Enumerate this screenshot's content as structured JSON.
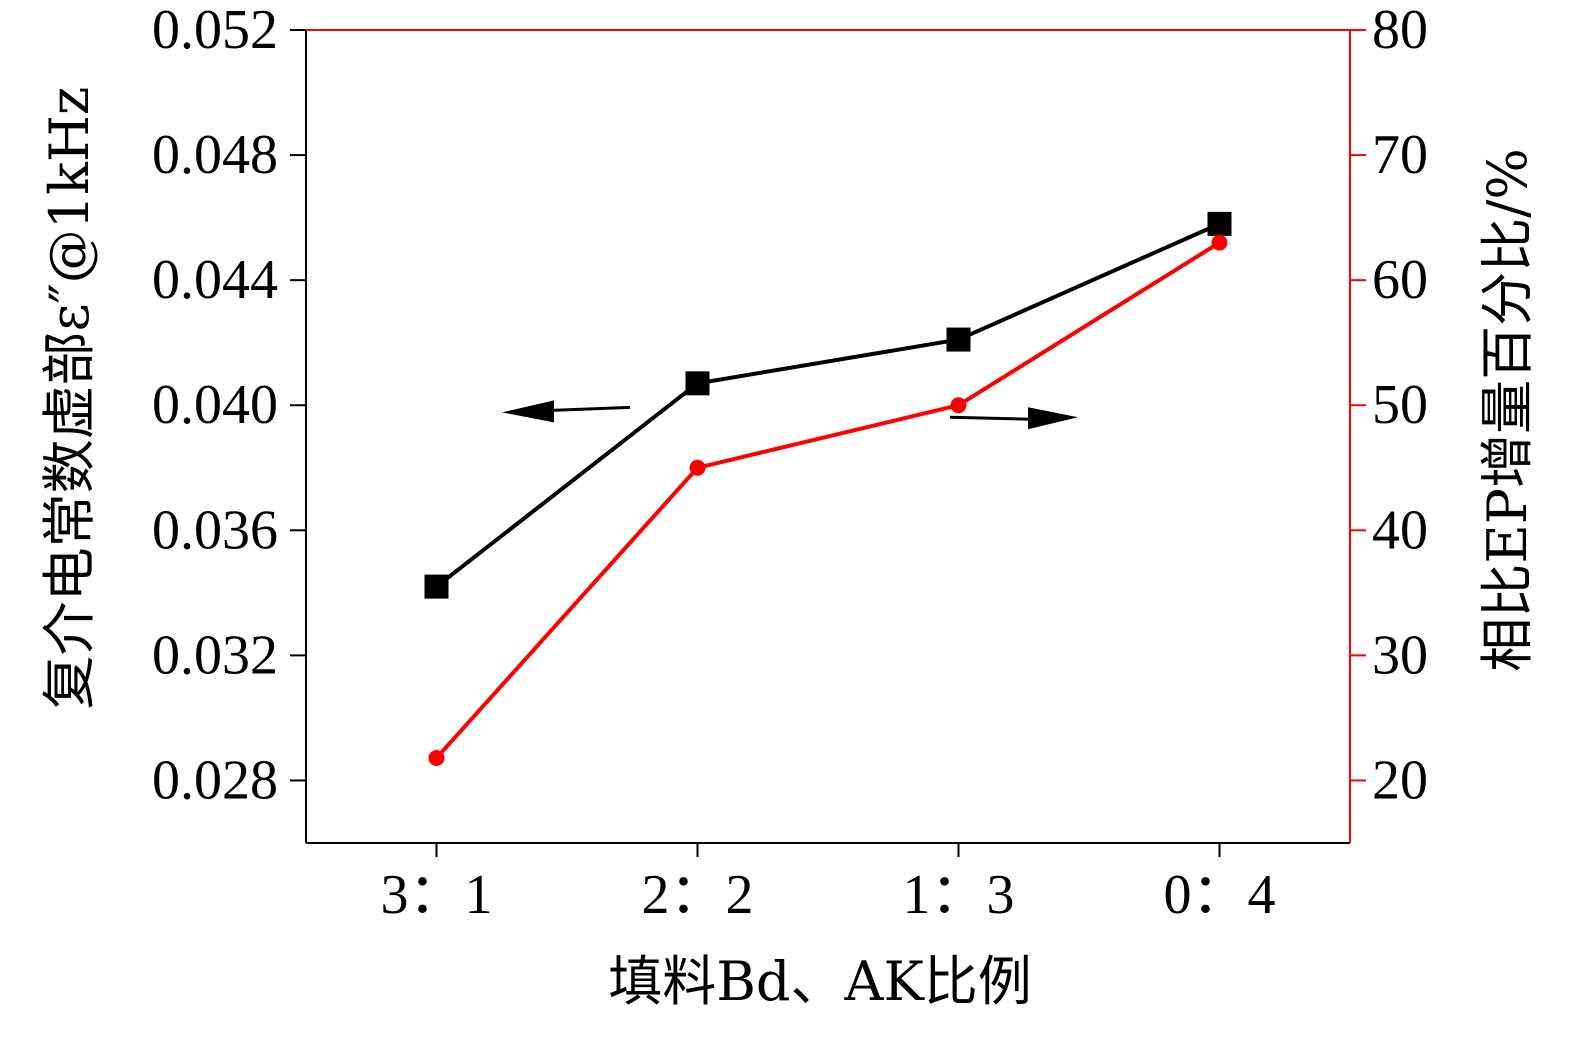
{
  "chart_data": {
    "type": "line",
    "categories": [
      "3：1",
      "2：2",
      "1：3",
      "0：4"
    ],
    "xlabel": "填料Bd、AK比例",
    "ylabel_left": "复介电常数虚部ε″@1kHz",
    "ylabel_right": "相比EP增量百分比/%",
    "y_left": {
      "lim": [
        0.026,
        0.052
      ],
      "ticks": [
        0.028,
        0.032,
        0.036,
        0.04,
        0.044,
        0.048,
        0.052
      ],
      "tick_labels": [
        "0.028",
        "0.032",
        "0.036",
        "0.040",
        "0.044",
        "0.048",
        "0.052"
      ]
    },
    "y_right": {
      "lim": [
        15,
        80
      ],
      "ticks": [
        20,
        30,
        40,
        50,
        60,
        70,
        80
      ],
      "tick_labels": [
        "20",
        "30",
        "40",
        "50",
        "60",
        "70",
        "80"
      ]
    },
    "series": [
      {
        "axis": "left",
        "marker": "square",
        "color": "#000000",
        "values": [
          0.0342,
          0.0407,
          0.0421,
          0.0458
        ]
      },
      {
        "axis": "right",
        "marker": "circle",
        "color": "#ff0000",
        "values": [
          21.8,
          45.0,
          50.0,
          63.0
        ]
      }
    ],
    "annotations": [
      {
        "type": "arrow",
        "points_to": "left-axis",
        "series": 0
      },
      {
        "type": "arrow",
        "points_to": "right-axis",
        "series": 1
      }
    ],
    "grid": false,
    "legend": "none"
  }
}
